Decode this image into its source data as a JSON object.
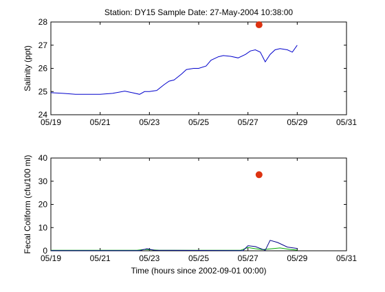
{
  "title": "Station: DY15  Sample Date: 27-May-2004 10:38:00",
  "xlabel": "Time (hours since 2002-09-01 00:00)",
  "chart_data": [
    {
      "type": "line",
      "ylabel": "Salinity (ppt)",
      "xlim": [
        0,
        12
      ],
      "ylim": [
        24,
        28
      ],
      "x_ticks": [
        0,
        2,
        4,
        6,
        8,
        10,
        12
      ],
      "x_tick_labels": [
        "05/19",
        "05/21",
        "05/23",
        "05/25",
        "05/27",
        "05/29",
        "05/31"
      ],
      "y_ticks": [
        24,
        25,
        26,
        27,
        28
      ],
      "y_tick_labels": [
        "24",
        "25",
        "26",
        "27",
        "28"
      ],
      "series": [
        {
          "color": "#0000cc",
          "x": [
            0,
            0.5,
            1,
            1.5,
            2,
            2.5,
            3,
            3.3,
            3.6,
            3.8,
            4,
            4.3,
            4.6,
            4.8,
            5,
            5.3,
            5.5,
            5.8,
            6,
            6.3,
            6.5,
            6.8,
            7,
            7.3,
            7.6,
            7.9,
            8.1,
            8.3,
            8.5,
            8.7,
            8.9,
            9.1,
            9.3,
            9.6,
            9.8,
            10
          ],
          "y": [
            24.95,
            24.92,
            24.88,
            24.88,
            24.88,
            24.92,
            25.02,
            24.95,
            24.88,
            25.0,
            25.0,
            25.05,
            25.3,
            25.45,
            25.5,
            25.75,
            25.95,
            26.0,
            26.0,
            26.1,
            26.35,
            26.5,
            26.55,
            26.52,
            26.45,
            26.6,
            26.75,
            26.8,
            26.7,
            26.28,
            26.6,
            26.8,
            26.85,
            26.8,
            26.7,
            27.0
          ]
        }
      ],
      "markers": [
        {
          "x": 8.45,
          "y": 27.88,
          "color": "#dd3311"
        }
      ]
    },
    {
      "type": "line",
      "ylabel": "Fecal Coliform (cfu/100 ml)",
      "xlim": [
        0,
        12
      ],
      "ylim": [
        0,
        40
      ],
      "x_ticks": [
        0,
        2,
        4,
        6,
        8,
        10,
        12
      ],
      "x_tick_labels": [
        "05/19",
        "05/21",
        "05/23",
        "05/25",
        "05/27",
        "05/29",
        "05/31"
      ],
      "y_ticks": [
        0,
        10,
        20,
        30,
        40
      ],
      "y_tick_labels": [
        "0",
        "10",
        "20",
        "30",
        "40"
      ],
      "series": [
        {
          "color": "#00aa00",
          "x": [
            0,
            3.5,
            3.8,
            4.1,
            4.4,
            7.7,
            8.0,
            8.3,
            8.6,
            8.9,
            9.3,
            9.7,
            10
          ],
          "y": [
            0.2,
            0.2,
            0.6,
            0.4,
            0.2,
            0.2,
            1.4,
            0.9,
            0.5,
            0.8,
            1.2,
            0.6,
            0.3
          ]
        },
        {
          "color": "#000088",
          "x": [
            0,
            3.6,
            3.9,
            4.2,
            7.8,
            8.0,
            8.3,
            8.7,
            8.9,
            9.2,
            9.6,
            10
          ],
          "y": [
            0.1,
            0.1,
            0.9,
            0.2,
            0.1,
            2.2,
            1.8,
            0.2,
            4.5,
            3.6,
            1.6,
            1.0
          ]
        }
      ],
      "markers": [
        {
          "x": 8.45,
          "y": 32.8,
          "color": "#dd3311"
        }
      ]
    }
  ]
}
